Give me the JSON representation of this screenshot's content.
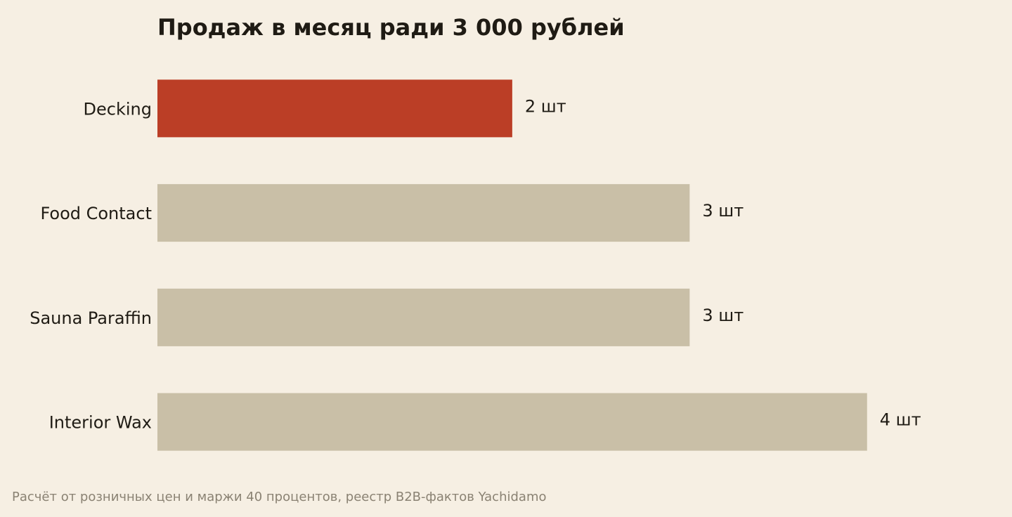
{
  "chart_data": {
    "type": "hbar",
    "title": "Продаж в месяц ради 3 000 рублей",
    "categories": [
      "Decking",
      "Food Contact",
      "Sauna Paraffin",
      "Interior Wax"
    ],
    "values": [
      2,
      3,
      3,
      4
    ],
    "value_labels": [
      "2 шт",
      "3 шт",
      "3 шт",
      "4 шт"
    ],
    "colors": [
      "#bb3e26",
      "#c9bfa7",
      "#c9bfa7",
      "#c9bfa7"
    ],
    "xlim": [
      0,
      4.5
    ],
    "footnote": "Расчёт от розничных цен и маржи 40 процентов, реестр B2B-фактов Yachidamo"
  }
}
